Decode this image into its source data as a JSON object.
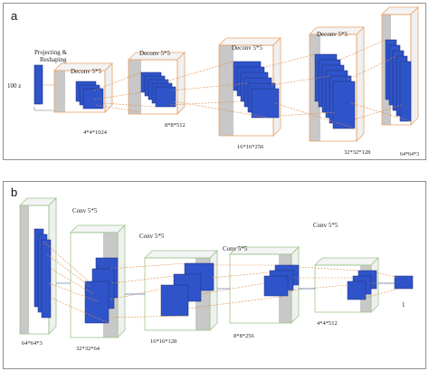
{
  "panel_a": {
    "letter": "a",
    "input_label": "100 z",
    "project_label_line1": "Projecting &",
    "project_label_line2": "Reshaping",
    "layers": [
      {
        "op": "Deconv 5*5",
        "shape": "4*4*1024"
      },
      {
        "op": "Deconv 5*5",
        "shape": "8*8*512"
      },
      {
        "op": "Deconv 5*5",
        "shape": "16*16*256"
      },
      {
        "op": "Deconv 5*5",
        "shape": "32*32*128"
      },
      {
        "op": "",
        "shape": "64*64*3"
      }
    ]
  },
  "panel_b": {
    "letter": "b",
    "layers": [
      {
        "op": "",
        "shape": "64*64*3"
      },
      {
        "op": "Conv 5*5",
        "shape": "32*32*64"
      },
      {
        "op": "Conv 5*5",
        "shape": "16*16*128"
      },
      {
        "op": "Conv 5*5",
        "shape": "8*8*256"
      },
      {
        "op": "Conv 5*5",
        "shape": "4*4*512"
      },
      {
        "op": "",
        "shape": "1"
      }
    ]
  },
  "colors": {
    "deconv_border": "#e8a26a",
    "conv_border": "#9cc58a",
    "block_gray": "#c8c8c8",
    "map_blue": "#2f54c9",
    "map_edge": "#1c2f7a",
    "link_line": "#e0893f"
  }
}
